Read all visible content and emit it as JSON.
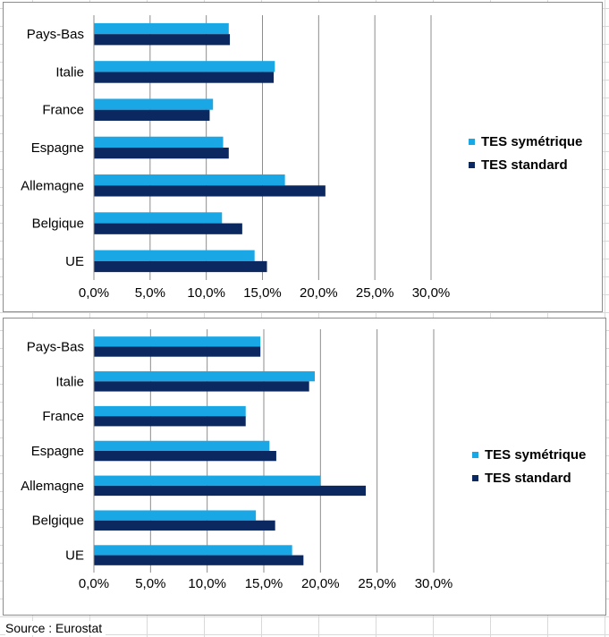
{
  "chart_data": [
    {
      "type": "bar",
      "orientation": "horizontal",
      "categories": [
        "UE",
        "Belgique",
        "Allemagne",
        "Espagne",
        "France",
        "Italie",
        "Pays-Bas"
      ],
      "series": [
        {
          "name": "TES symétrique",
          "color": "#1aa7e6",
          "values": [
            14.3,
            11.4,
            17.0,
            11.5,
            10.6,
            16.1,
            12.0
          ]
        },
        {
          "name": "TES standard",
          "color": "#0b2960",
          "values": [
            15.4,
            13.2,
            20.6,
            12.0,
            10.3,
            16.0,
            12.1
          ]
        }
      ],
      "xlim": [
        0,
        30
      ],
      "xticks": [
        "0,0%",
        "5,0%",
        "10,0%",
        "15,0%",
        "20,0%",
        "25,0%",
        "30,0%"
      ],
      "grid": "vertical",
      "legend": "right"
    },
    {
      "type": "bar",
      "orientation": "horizontal",
      "categories": [
        "UE",
        "Belgique",
        "Allemagne",
        "Espagne",
        "France",
        "Italie",
        "Pays-Bas"
      ],
      "series": [
        {
          "name": "TES symétrique",
          "color": "#1aa7e6",
          "values": [
            17.5,
            14.3,
            20.0,
            15.5,
            13.4,
            19.5,
            14.7
          ]
        },
        {
          "name": "TES standard",
          "color": "#0b2960",
          "values": [
            18.5,
            16.0,
            24.0,
            16.1,
            13.4,
            19.0,
            14.7
          ]
        }
      ],
      "xlim": [
        0,
        30
      ],
      "xticks": [
        "0,0%",
        "5,0%",
        "10,0%",
        "15,0%",
        "20,0%",
        "25,0%",
        "30,0%"
      ],
      "grid": "vertical",
      "legend": "right"
    }
  ],
  "footer": {
    "source": "Source : Eurostat"
  }
}
